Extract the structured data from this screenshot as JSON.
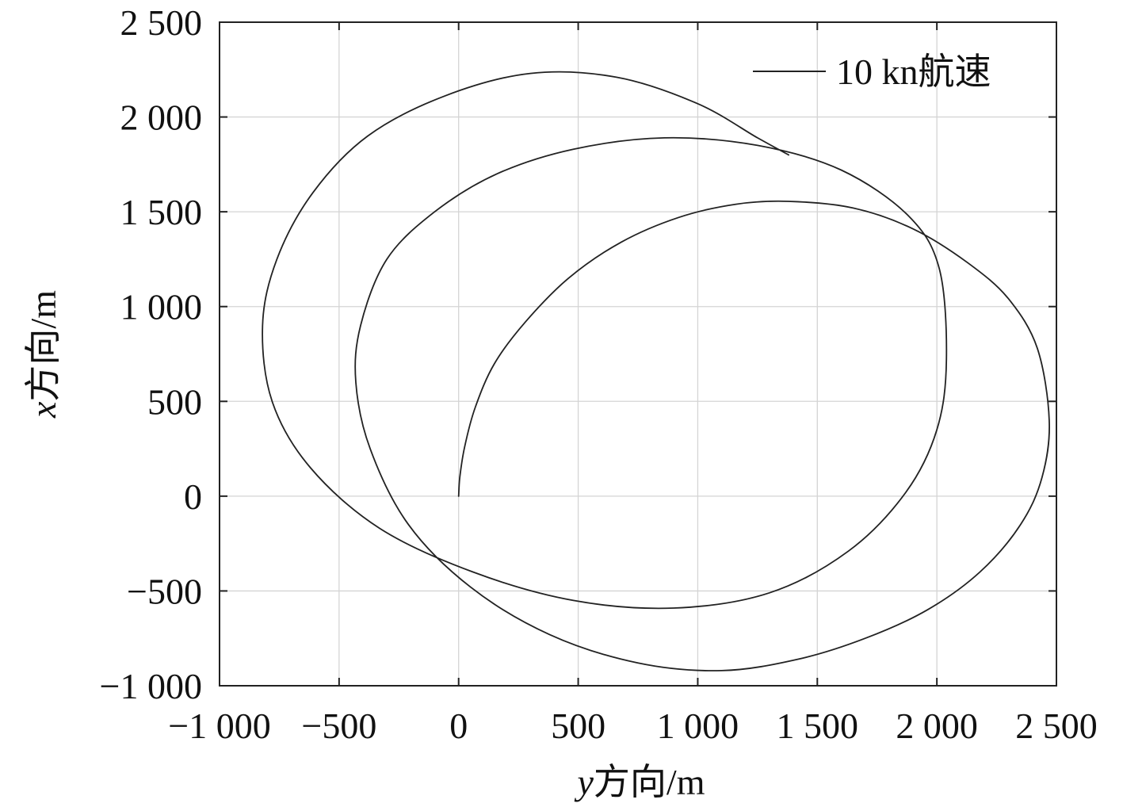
{
  "chart_data": {
    "type": "line",
    "title": "",
    "xlabel": {
      "var": "y",
      "rest": "方向/m"
    },
    "ylabel": {
      "var": "x",
      "rest": "方向/m"
    },
    "xlim": [
      -1000,
      2500
    ],
    "ylim": [
      -1000,
      2500
    ],
    "xticks": [
      -1000,
      -500,
      0,
      500,
      1000,
      1500,
      2000,
      2500
    ],
    "yticks": [
      -1000,
      -500,
      0,
      500,
      1000,
      1500,
      2000,
      2500
    ],
    "xtick_labels": [
      "−1 000",
      "−500",
      "0",
      "500",
      "1 000",
      "1 500",
      "2 000",
      "2 500"
    ],
    "ytick_labels": [
      "−1 000",
      "−500",
      "0",
      "500",
      "1 000",
      "1 500",
      "2 000",
      "2 500"
    ],
    "grid": true,
    "legend_position": "top-right",
    "series": [
      {
        "name": "10 kn航速",
        "color": "#222222",
        "x": [
          0,
          5,
          25,
          70,
          150,
          280,
          460,
          680,
          920,
          1160,
          1380,
          1650,
          1900,
          2130,
          2300,
          2420,
          2470,
          2440,
          2350,
          2180,
          1960,
          1700,
          1420,
          1100,
          750,
          380,
          50,
          -210,
          -370,
          -430,
          -410,
          -300,
          -100,
          160,
          480,
          860,
          1250,
          1600,
          1880,
          2010,
          2040,
          2000,
          1870,
          1630,
          1300,
          900,
          480,
          60,
          -330,
          -620,
          -780,
          -820,
          -760,
          -610,
          -380,
          -60,
          300,
          660,
          1000,
          1250,
          1380
        ],
        "y": [
          0,
          100,
          260,
          470,
          700,
          920,
          1150,
          1340,
          1470,
          1540,
          1555,
          1520,
          1410,
          1230,
          1040,
          780,
          400,
          100,
          -150,
          -400,
          -600,
          -750,
          -860,
          -920,
          -880,
          -730,
          -480,
          -150,
          250,
          600,
          900,
          1250,
          1500,
          1700,
          1830,
          1890,
          1850,
          1720,
          1480,
          1200,
          720,
          350,
          20,
          -290,
          -510,
          -590,
          -550,
          -400,
          -170,
          150,
          500,
          900,
          1250,
          1600,
          1900,
          2110,
          2230,
          2210,
          2070,
          1890,
          1800
        ]
      }
    ]
  }
}
